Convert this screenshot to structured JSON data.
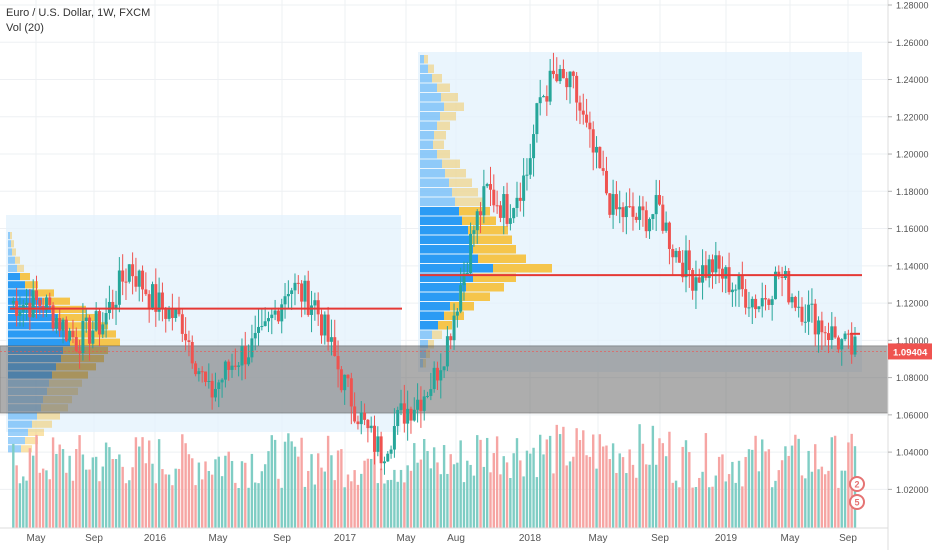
{
  "legend": {
    "title": "Euro / U.S. Dollar, 1W, FXCM",
    "indicator": "Vol (20)"
  },
  "price_tag": "1.09404",
  "colors": {
    "up": "#26a69a",
    "down": "#ef5350",
    "volume_up": "#7fcdc4",
    "volume_down": "#f6a5a3",
    "poc_line": "#e53935",
    "zone": "#6b6b6b",
    "profile_blue": "#2196f3",
    "profile_yellow": "#f5c242",
    "profile_bg": "#e3f1fc",
    "price_tag": "#ef5350",
    "badge": "#e57373"
  },
  "chart_data": {
    "type": "candlestick",
    "title": "Euro / U.S. Dollar, 1W, FXCM",
    "ylim": [
      1.01,
      1.28
    ],
    "y_ticks": [
      "1.28000",
      "1.26000",
      "1.24000",
      "1.22000",
      "1.20000",
      "1.18000",
      "1.16000",
      "1.14000",
      "1.12000",
      "1.10000",
      "1.08000",
      "1.06000",
      "1.04000",
      "1.02000"
    ],
    "x_ticks": [
      "May",
      "Sep",
      "2016",
      "May",
      "Sep",
      "2017",
      "May",
      "Aug",
      "2018",
      "May",
      "Sep",
      "2019",
      "May",
      "Sep"
    ],
    "last_price": 1.09404,
    "annotations": {
      "poc_lines": [
        {
          "price": 1.117,
          "from": "May 2015",
          "to": "Apr 2017"
        },
        {
          "price": 1.135,
          "from": "May 2017",
          "to": "Sep 2019"
        }
      ],
      "zone": {
        "low": 1.061,
        "high": 1.097
      },
      "badges": [
        "2",
        "5"
      ]
    },
    "weekly_close_path": [
      [
        0,
        1.12
      ],
      [
        10,
        1.12
      ],
      [
        20,
        1.1
      ],
      [
        28,
        1.11
      ],
      [
        36,
        1.14
      ],
      [
        44,
        1.12
      ],
      [
        52,
        1.11
      ],
      [
        60,
        1.07
      ],
      [
        68,
        1.09
      ],
      [
        76,
        1.1
      ],
      [
        84,
        1.13
      ],
      [
        92,
        1.12
      ],
      [
        100,
        1.08
      ],
      [
        108,
        1.05
      ],
      [
        112,
        1.04
      ],
      [
        118,
        1.06
      ],
      [
        124,
        1.07
      ],
      [
        128,
        1.08
      ],
      [
        132,
        1.1
      ],
      [
        136,
        1.13
      ],
      [
        140,
        1.16
      ],
      [
        144,
        1.18
      ],
      [
        150,
        1.17
      ],
      [
        156,
        1.19
      ],
      [
        160,
        1.23
      ],
      [
        164,
        1.24
      ],
      [
        170,
        1.235
      ],
      [
        176,
        1.2
      ],
      [
        182,
        1.17
      ],
      [
        190,
        1.165
      ],
      [
        196,
        1.17
      ],
      [
        200,
        1.15
      ],
      [
        206,
        1.135
      ],
      [
        212,
        1.14
      ],
      [
        218,
        1.13
      ],
      [
        226,
        1.12
      ],
      [
        232,
        1.135
      ],
      [
        238,
        1.12
      ],
      [
        244,
        1.11
      ],
      [
        250,
        1.1
      ],
      [
        253,
        1.095
      ],
      [
        255,
        1.094
      ]
    ]
  }
}
